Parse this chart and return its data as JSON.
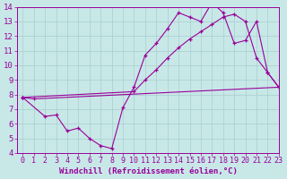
{
  "xlabel": "Windchill (Refroidissement éolien,°C)",
  "xlim": [
    -0.5,
    23
  ],
  "ylim": [
    4,
    14
  ],
  "xticks": [
    0,
    1,
    2,
    3,
    4,
    5,
    6,
    7,
    8,
    9,
    10,
    11,
    12,
    13,
    14,
    15,
    16,
    17,
    18,
    19,
    20,
    21,
    22,
    23
  ],
  "yticks": [
    4,
    5,
    6,
    7,
    8,
    9,
    10,
    11,
    12,
    13,
    14
  ],
  "bg_color": "#c8e8e8",
  "grid_color": "#a8cece",
  "line_color": "#990099",
  "line1_x": [
    0,
    1,
    23
  ],
  "line1_y": [
    7.8,
    7.7,
    8.5
  ],
  "line2_x": [
    0,
    2,
    3,
    4,
    5,
    6,
    7,
    8,
    9,
    10,
    11,
    12,
    13,
    14,
    15,
    16,
    17,
    18,
    19,
    20,
    21,
    22,
    23
  ],
  "line2_y": [
    7.8,
    6.5,
    6.6,
    5.5,
    5.7,
    5.0,
    4.5,
    4.3,
    7.1,
    8.5,
    10.7,
    11.5,
    12.5,
    13.6,
    13.3,
    13.0,
    14.3,
    13.6,
    11.5,
    11.7,
    13.0,
    9.5,
    8.5
  ],
  "line3_x": [
    0,
    10,
    11,
    12,
    13,
    14,
    15,
    16,
    17,
    18,
    19,
    20,
    21,
    22,
    23
  ],
  "line3_y": [
    7.8,
    8.2,
    9.0,
    9.7,
    10.5,
    11.2,
    11.8,
    12.3,
    12.8,
    13.3,
    13.5,
    13.0,
    10.5,
    9.5,
    8.5
  ],
  "font_size": 6.5
}
